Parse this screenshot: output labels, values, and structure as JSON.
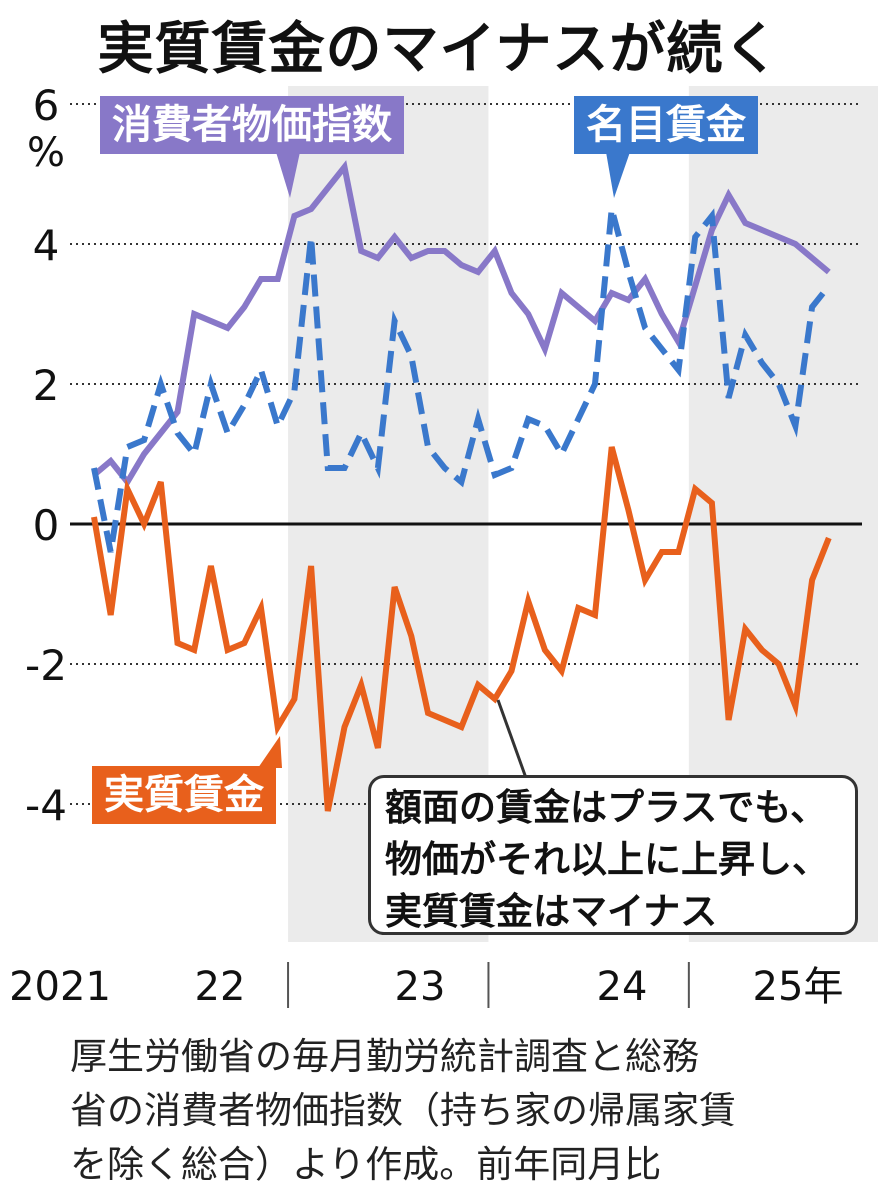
{
  "title": "実質賃金のマイナスが続く",
  "labels": {
    "cpi": "消費者物価指数",
    "nominal": "名目賃金",
    "real": "実質賃金"
  },
  "callout": {
    "lines": [
      "額面の賃金はプラスでも、",
      "物価がそれ以上に上昇し、",
      "実質賃金はマイナス"
    ]
  },
  "source": {
    "lines": [
      "厚生労働省の毎月勤労統計調査と総務",
      "省の消費者物価指数（持ち家の帰属家賃",
      "を除く総合）より作成。前年同月比"
    ]
  },
  "colors": {
    "cpi": "#8878c8",
    "nominal": "#3a78cc",
    "real": "#e8601c",
    "shade": "#ebebeb"
  },
  "chart_data": {
    "type": "line",
    "ylabel": "%",
    "ylim": [
      -6,
      6
    ],
    "yticks": [
      6,
      4,
      2,
      0,
      -2,
      -4
    ],
    "x_period_labels": [
      "2021",
      "22",
      "23",
      "24",
      "25年"
    ],
    "shaded_years": [
      "22",
      "24"
    ],
    "x_start": "2021-01",
    "series": [
      {
        "name": "消費者物価指数",
        "key": "cpi",
        "style": "solid",
        "values": [
          0.7,
          0.9,
          0.6,
          1.0,
          1.3,
          1.6,
          3.0,
          2.9,
          2.8,
          3.1,
          3.5,
          3.5,
          4.4,
          4.5,
          4.8,
          5.1,
          3.9,
          3.8,
          4.1,
          3.8,
          3.9,
          3.9,
          3.7,
          3.6,
          3.9,
          3.3,
          3.0,
          2.5,
          3.3,
          3.1,
          2.9,
          3.3,
          3.2,
          3.5,
          3.0,
          2.6,
          3.4,
          4.2,
          4.7,
          4.3,
          4.2,
          4.1,
          4.0,
          3.8,
          3.6
        ]
      },
      {
        "name": "名目賃金",
        "key": "nominal",
        "style": "dashed",
        "values": [
          0.8,
          -0.4,
          1.1,
          1.2,
          2.0,
          1.3,
          1.0,
          2.0,
          1.3,
          1.7,
          2.2,
          1.4,
          1.9,
          4.1,
          0.8,
          0.8,
          1.3,
          0.8,
          2.9,
          2.4,
          1.1,
          0.8,
          0.6,
          1.5,
          0.7,
          0.8,
          1.5,
          1.4,
          1.0,
          1.5,
          2.0,
          4.5,
          3.6,
          2.8,
          2.5,
          2.2,
          4.1,
          4.4,
          1.8,
          2.7,
          2.3,
          2.0,
          1.4,
          3.1,
          3.4
        ]
      },
      {
        "name": "実質賃金",
        "key": "real",
        "style": "solid",
        "values": [
          0.1,
          -1.3,
          0.5,
          0.0,
          0.6,
          -1.7,
          -1.8,
          -0.6,
          -1.8,
          -1.7,
          -1.2,
          -2.9,
          -2.5,
          -0.6,
          -4.1,
          -2.9,
          -2.3,
          -3.2,
          -0.9,
          -1.6,
          -2.7,
          -2.8,
          -2.9,
          -2.3,
          -2.5,
          -2.1,
          -1.1,
          -1.8,
          -2.1,
          -1.2,
          -1.3,
          1.1,
          0.2,
          -0.8,
          -0.4,
          -0.4,
          0.5,
          0.3,
          -2.8,
          -1.5,
          -1.8,
          -2.0,
          -2.6,
          -0.8,
          -0.2
        ]
      }
    ]
  }
}
